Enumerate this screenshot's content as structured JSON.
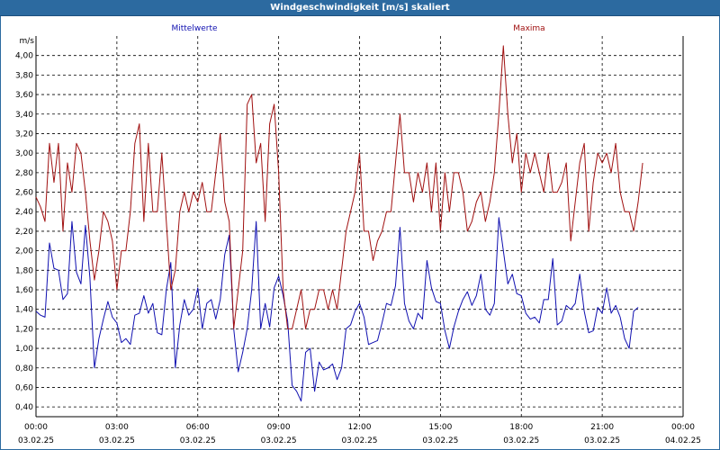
{
  "window": {
    "title": "Windgeschwindigkeit [m/s] skaliert"
  },
  "colors": {
    "mean": "#1010b0",
    "max": "#a01010",
    "grid": "#000000",
    "titlebar": "#2c6aa0"
  },
  "chart_data": {
    "type": "line",
    "ylabel": "m/s",
    "ylim": [
      0.3,
      4.2
    ],
    "yticks": [
      "4,00",
      "3,80",
      "3,60",
      "3,40",
      "3,20",
      "3,00",
      "2,80",
      "2,60",
      "2,40",
      "2,20",
      "2,00",
      "1,80",
      "1,60",
      "1,40",
      "1,20",
      "1,00",
      "0,80",
      "0,60",
      "0,40"
    ],
    "xlim": [
      "03.02.25 00:00",
      "04.02.25 00:00"
    ],
    "xticks": [
      {
        "time": "00:00",
        "date": "03.02.25"
      },
      {
        "time": "03:00",
        "date": "03.02.25"
      },
      {
        "time": "06:00",
        "date": "03.02.25"
      },
      {
        "time": "09:00",
        "date": "03.02.25"
      },
      {
        "time": "12:00",
        "date": "03.02.25"
      },
      {
        "time": "15:00",
        "date": "03.02.25"
      },
      {
        "time": "18:00",
        "date": "03.02.25"
      },
      {
        "time": "21:00",
        "date": "03.02.25"
      },
      {
        "time": "00:00",
        "date": "04.02.25"
      }
    ],
    "grid": true,
    "time_step_minutes": 10,
    "series": [
      {
        "name": "Mittelwerte",
        "color": "#1010b0",
        "values": [
          1.38,
          1.34,
          1.32,
          2.08,
          1.82,
          1.8,
          1.5,
          1.56,
          2.3,
          1.78,
          1.66,
          2.26,
          1.72,
          0.8,
          1.1,
          1.3,
          1.48,
          1.32,
          1.26,
          1.06,
          1.1,
          1.04,
          1.34,
          1.36,
          1.54,
          1.36,
          1.46,
          1.16,
          1.14,
          1.6,
          1.88,
          0.8,
          1.24,
          1.5,
          1.34,
          1.4,
          1.62,
          1.2,
          1.46,
          1.5,
          1.3,
          1.5,
          1.96,
          2.16,
          1.2,
          0.76,
          0.96,
          1.2,
          1.6,
          2.3,
          1.2,
          1.46,
          1.22,
          1.62,
          1.74,
          1.54,
          1.28,
          0.62,
          0.56,
          0.46,
          0.96,
          1.0,
          0.56,
          0.86,
          0.78,
          0.8,
          0.84,
          0.68,
          0.8,
          1.2,
          1.24,
          1.38,
          1.46,
          1.32,
          1.04,
          1.06,
          1.08,
          1.26,
          1.46,
          1.44,
          1.64,
          2.24,
          1.46,
          1.28,
          1.2,
          1.36,
          1.3,
          1.9,
          1.62,
          1.48,
          1.46,
          1.18,
          1.0,
          1.22,
          1.38,
          1.5,
          1.58,
          1.44,
          1.54,
          1.76,
          1.4,
          1.34,
          1.46,
          2.34,
          2.0,
          1.66,
          1.76,
          1.56,
          1.54,
          1.36,
          1.3,
          1.32,
          1.26,
          1.5,
          1.5,
          1.92,
          1.24,
          1.28,
          1.44,
          1.4,
          1.46,
          1.76,
          1.38,
          1.16,
          1.18,
          1.42,
          1.36,
          1.62,
          1.36,
          1.44,
          1.32,
          1.1,
          1.0,
          1.38,
          1.42
        ]
      },
      {
        "name": "Maxima",
        "color": "#a01010",
        "values": [
          2.55,
          2.45,
          2.3,
          3.1,
          2.7,
          3.1,
          2.2,
          2.9,
          2.6,
          3.1,
          3.0,
          2.6,
          2.1,
          1.7,
          2.0,
          2.4,
          2.3,
          2.1,
          1.6,
          2.0,
          2.0,
          2.4,
          3.1,
          3.3,
          2.3,
          3.1,
          2.4,
          2.4,
          3.0,
          2.3,
          1.6,
          1.8,
          2.4,
          2.6,
          2.4,
          2.6,
          2.5,
          2.7,
          2.4,
          2.4,
          2.8,
          3.2,
          2.5,
          2.3,
          1.2,
          1.6,
          2.0,
          3.5,
          3.6,
          2.9,
          3.1,
          2.3,
          3.3,
          3.5,
          2.8,
          1.6,
          1.2,
          1.2,
          1.4,
          1.6,
          1.2,
          1.4,
          1.4,
          1.6,
          1.6,
          1.4,
          1.6,
          1.4,
          1.8,
          2.2,
          2.4,
          2.6,
          3.0,
          2.2,
          2.2,
          1.9,
          2.1,
          2.2,
          2.4,
          2.4,
          2.9,
          3.4,
          2.8,
          2.8,
          2.5,
          2.8,
          2.6,
          2.9,
          2.4,
          2.9,
          2.2,
          2.8,
          2.4,
          2.8,
          2.8,
          2.6,
          2.2,
          2.3,
          2.5,
          2.6,
          2.3,
          2.5,
          2.8,
          3.4,
          4.1,
          3.4,
          2.9,
          3.2,
          2.6,
          3.0,
          2.8,
          3.0,
          2.8,
          2.6,
          3.0,
          2.6,
          2.6,
          2.7,
          2.9,
          2.1,
          2.5,
          2.9,
          3.1,
          2.2,
          2.7,
          3.0,
          2.9,
          3.0,
          2.8,
          3.1,
          2.6,
          2.4,
          2.4,
          2.2,
          2.5,
          2.9
        ]
      }
    ]
  }
}
